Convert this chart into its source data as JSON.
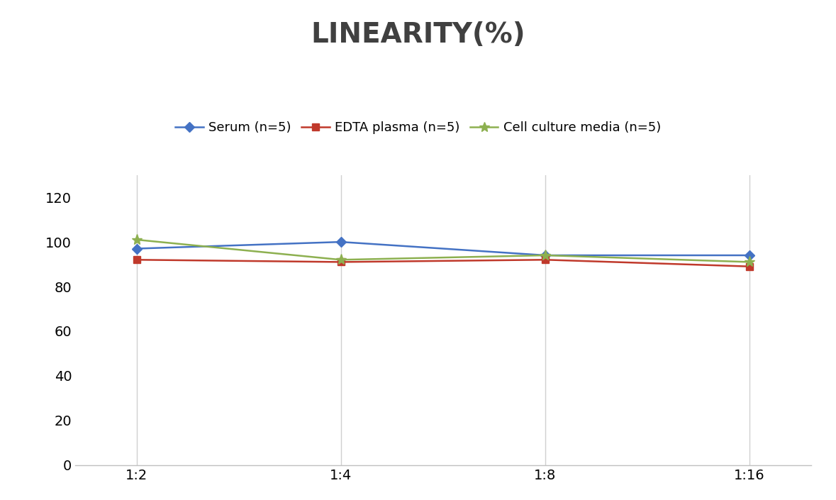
{
  "title": "LINEARITY(%)",
  "x_labels": [
    "1:2",
    "1:4",
    "1:8",
    "1:16"
  ],
  "x_positions": [
    0,
    1,
    2,
    3
  ],
  "series": [
    {
      "label": "Serum (n=5)",
      "values": [
        97,
        100,
        94,
        94
      ],
      "color": "#4472C4",
      "marker": "D",
      "markersize": 7,
      "linewidth": 1.8
    },
    {
      "label": "EDTA plasma (n=5)",
      "values": [
        92,
        91,
        92,
        89
      ],
      "color": "#C0392B",
      "marker": "s",
      "markersize": 7,
      "linewidth": 1.8
    },
    {
      "label": "Cell culture media (n=5)",
      "values": [
        101,
        92,
        94,
        91
      ],
      "color": "#8DB050",
      "marker": "*",
      "markersize": 11,
      "linewidth": 1.8
    }
  ],
  "ylim": [
    0,
    130
  ],
  "yticks": [
    0,
    20,
    40,
    60,
    80,
    100,
    120
  ],
  "title_fontsize": 28,
  "legend_fontsize": 13,
  "tick_fontsize": 14,
  "background_color": "#ffffff",
  "grid_color": "#d0d0d0",
  "spine_color": "#c0c0c0"
}
